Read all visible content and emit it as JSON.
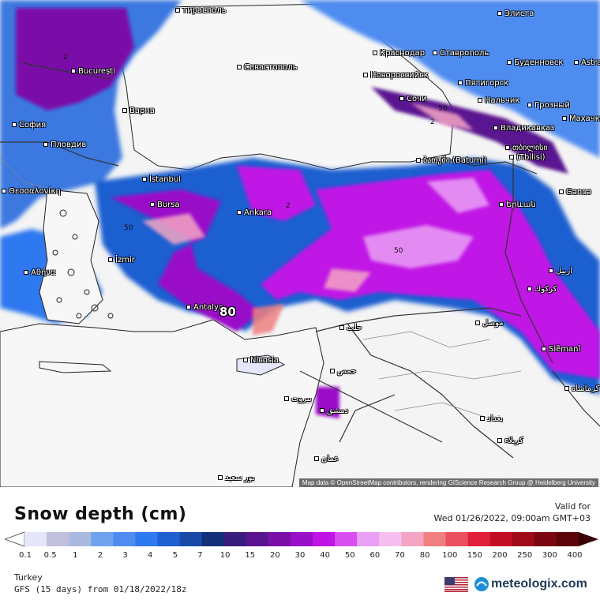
{
  "map": {
    "attribution": "Map data © OpenStreetMap contributors, rendering GIScience Research Group @ Heidelberg University",
    "max_value_label": "80",
    "contour_labels": [
      "50",
      "50",
      "2",
      "2",
      "50",
      "2"
    ],
    "cities": [
      {
        "name": "Тирасполь"
      },
      {
        "name": "Элиста"
      },
      {
        "name": "București"
      },
      {
        "name": "Краснодар"
      },
      {
        "name": "Ставрополь"
      },
      {
        "name": "Буденновск"
      },
      {
        "name": "Севастополь"
      },
      {
        "name": "Новороссийск"
      },
      {
        "name": "Пятигорск"
      },
      {
        "name": "Варна"
      },
      {
        "name": "Сочи"
      },
      {
        "name": "Нальчик"
      },
      {
        "name": "Грозный"
      },
      {
        "name": "София"
      },
      {
        "name": "Владикавказ"
      },
      {
        "name": "Махачка"
      },
      {
        "name": "Пловдив"
      },
      {
        "name": "თბილისი"
      },
      {
        "name": "ბათუმი (Batumi)"
      },
      {
        "name": "(Tbilisi)"
      },
      {
        "name": "Θεσσαλονίκη"
      },
      {
        "name": "İstanbul"
      },
      {
        "name": "Gəncə"
      },
      {
        "name": "Bursa"
      },
      {
        "name": "Ankara"
      },
      {
        "name": "Երևան"
      },
      {
        "name": "İzmir"
      },
      {
        "name": "Αθήνα"
      },
      {
        "name": "Antalya"
      },
      {
        "name": "حلب"
      },
      {
        "name": "موصل"
      },
      {
        "name": "Slêmanî"
      },
      {
        "name": "Nicosia"
      },
      {
        "name": "حمص"
      },
      {
        "name": "بيروت"
      },
      {
        "name": "دمشق"
      },
      {
        "name": "كرماشاه"
      },
      {
        "name": "بغداد"
      },
      {
        "name": "كربلاء"
      },
      {
        "name": "عمان"
      },
      {
        "name": "بور سعيد"
      },
      {
        "name": "Astra"
      },
      {
        "name": "اربيل"
      },
      {
        "name": "كركوك"
      }
    ]
  },
  "legend": {
    "title": "Snow depth (cm)",
    "valid_label": "Valid for",
    "valid_time": "Wed 01/26/2022, 09:00am GMT+03",
    "ticks": [
      "0.1",
      "0.5",
      "1",
      "2",
      "3",
      "4",
      "5",
      "7",
      "10",
      "15",
      "20",
      "30",
      "40",
      "50",
      "60",
      "70",
      "80",
      "100",
      "150",
      "200",
      "250",
      "300",
      "400"
    ],
    "colors": [
      "#e6e6fa",
      "#c0c0dd",
      "#a9b9e0",
      "#6fa3ee",
      "#4f8cf0",
      "#2e78f0",
      "#1f5fd0",
      "#1a4aa8",
      "#142f7a",
      "#3a1c7e",
      "#5a1490",
      "#7a10a8",
      "#9a10c8",
      "#c014e6",
      "#d84ef0",
      "#eaa0f5",
      "#f5c0f0",
      "#f4a5c4",
      "#f08080",
      "#ea5060",
      "#e21f3a",
      "#c20e24",
      "#9e0a18",
      "#7a0610",
      "#5c040a"
    ],
    "region": "Turkey",
    "model_run": "GFS (15 days) from  01/18/2022/18z",
    "brand": "meteologix.com"
  }
}
